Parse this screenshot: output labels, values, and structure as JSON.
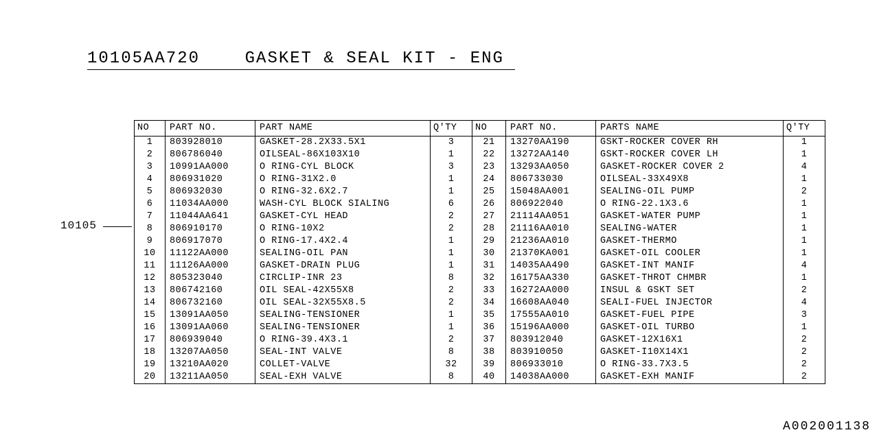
{
  "title_part_no": "10105AA720",
  "title_desc": "GASKET & SEAL KIT - ENG",
  "side_label": "10105",
  "footer_code": "A002001138",
  "headers": {
    "no": "NO",
    "part_no": "PART NO.",
    "part_name_left": "PART NAME",
    "qty": "Q'TY",
    "no2": "NO",
    "part_no2": "PART NO.",
    "part_name_right": "PARTS NAME",
    "qty2": "Q'TY"
  },
  "rows": [
    {
      "no": "1",
      "pn": "803928010",
      "name": "GASKET-28.2X33.5X1",
      "qty": "3",
      "no2": "21",
      "pn2": "13270AA190",
      "name2": "GSKT-ROCKER COVER RH",
      "qty2": "1"
    },
    {
      "no": "2",
      "pn": "806786040",
      "name": "OILSEAL-86X103X10",
      "qty": "1",
      "no2": "22",
      "pn2": "13272AA140",
      "name2": "GSKT-ROCKER COVER LH",
      "qty2": "1"
    },
    {
      "no": "3",
      "pn": "10991AA000",
      "name": "O RING-CYL BLOCK",
      "qty": "3",
      "no2": "23",
      "pn2": "13293AA050",
      "name2": "GASKET-ROCKER COVER 2",
      "qty2": "4"
    },
    {
      "no": "4",
      "pn": "806931020",
      "name": "O RING-31X2.0",
      "qty": "1",
      "no2": "24",
      "pn2": "806733030",
      "name2": "OILSEAL-33X49X8",
      "qty2": "1"
    },
    {
      "no": "5",
      "pn": "806932030",
      "name": "O RING-32.6X2.7",
      "qty": "1",
      "no2": "25",
      "pn2": "15048AA001",
      "name2": "SEALING-OIL PUMP",
      "qty2": "2"
    },
    {
      "no": "6",
      "pn": "11034AA000",
      "name": "WASH-CYL BLOCK SIALING",
      "qty": "6",
      "no2": "26",
      "pn2": "806922040",
      "name2": "O RING-22.1X3.6",
      "qty2": "1"
    },
    {
      "no": "7",
      "pn": "11044AA641",
      "name": "GASKET-CYL HEAD",
      "qty": "2",
      "no2": "27",
      "pn2": "21114AA051",
      "name2": "GASKET-WATER PUMP",
      "qty2": "1"
    },
    {
      "no": "8",
      "pn": "806910170",
      "name": "O RING-10X2",
      "qty": "2",
      "no2": "28",
      "pn2": "21116AA010",
      "name2": "SEALING-WATER",
      "qty2": "1"
    },
    {
      "no": "9",
      "pn": "806917070",
      "name": "O RING-17.4X2.4",
      "qty": "1",
      "no2": "29",
      "pn2": "21236AA010",
      "name2": "GASKET-THERMO",
      "qty2": "1"
    },
    {
      "no": "10",
      "pn": "11122AA000",
      "name": "SEALING-OIL PAN",
      "qty": "1",
      "no2": "30",
      "pn2": "21370KA001",
      "name2": "GASKET-OIL COOLER",
      "qty2": "1"
    },
    {
      "no": "11",
      "pn": "11126AA000",
      "name": "GASKET-DRAIN PLUG",
      "qty": "1",
      "no2": "31",
      "pn2": "14035AA490",
      "name2": "GASKET-INT MANIF",
      "qty2": "4"
    },
    {
      "no": "12",
      "pn": "805323040",
      "name": "CIRCLIP-INR 23",
      "qty": "8",
      "no2": "32",
      "pn2": "16175AA330",
      "name2": "GASKET-THROT CHMBR",
      "qty2": "1"
    },
    {
      "no": "13",
      "pn": "806742160",
      "name": "OIL SEAL-42X55X8",
      "qty": "2",
      "no2": "33",
      "pn2": "16272AA000",
      "name2": "INSUL & GSKT SET",
      "qty2": "2"
    },
    {
      "no": "14",
      "pn": "806732160",
      "name": "OIL SEAL-32X55X8.5",
      "qty": "2",
      "no2": "34",
      "pn2": "16608AA040",
      "name2": "SEALI-FUEL INJECTOR",
      "qty2": "4"
    },
    {
      "no": "15",
      "pn": "13091AA050",
      "name": "SEALING-TENSIONER",
      "qty": "1",
      "no2": "35",
      "pn2": "17555AA010",
      "name2": "GASKET-FUEL PIPE",
      "qty2": "3"
    },
    {
      "no": "16",
      "pn": "13091AA060",
      "name": "SEALING-TENSIONER",
      "qty": "1",
      "no2": "36",
      "pn2": "15196AA000",
      "name2": "GASKET-OIL TURBO",
      "qty2": "1"
    },
    {
      "no": "17",
      "pn": "806939040",
      "name": "O RING-39.4X3.1",
      "qty": "2",
      "no2": "37",
      "pn2": "803912040",
      "name2": "GASKET-12X16X1",
      "qty2": "2"
    },
    {
      "no": "18",
      "pn": "13207AA050",
      "name": "SEAL-INT VALVE",
      "qty": "8",
      "no2": "38",
      "pn2": "803910050",
      "name2": "GASKET-I10X14X1",
      "qty2": "2"
    },
    {
      "no": "19",
      "pn": "13210AA020",
      "name": "COLLET-VALVE",
      "qty": "32",
      "no2": "39",
      "pn2": "806933010",
      "name2": "O RING-33.7X3.5",
      "qty2": "2"
    },
    {
      "no": "20",
      "pn": "13211AA050",
      "name": "SEAL-EXH VALVE",
      "qty": "8",
      "no2": "40",
      "pn2": "14038AA000",
      "name2": "GASKET-EXH MANIF",
      "qty2": "2"
    }
  ]
}
